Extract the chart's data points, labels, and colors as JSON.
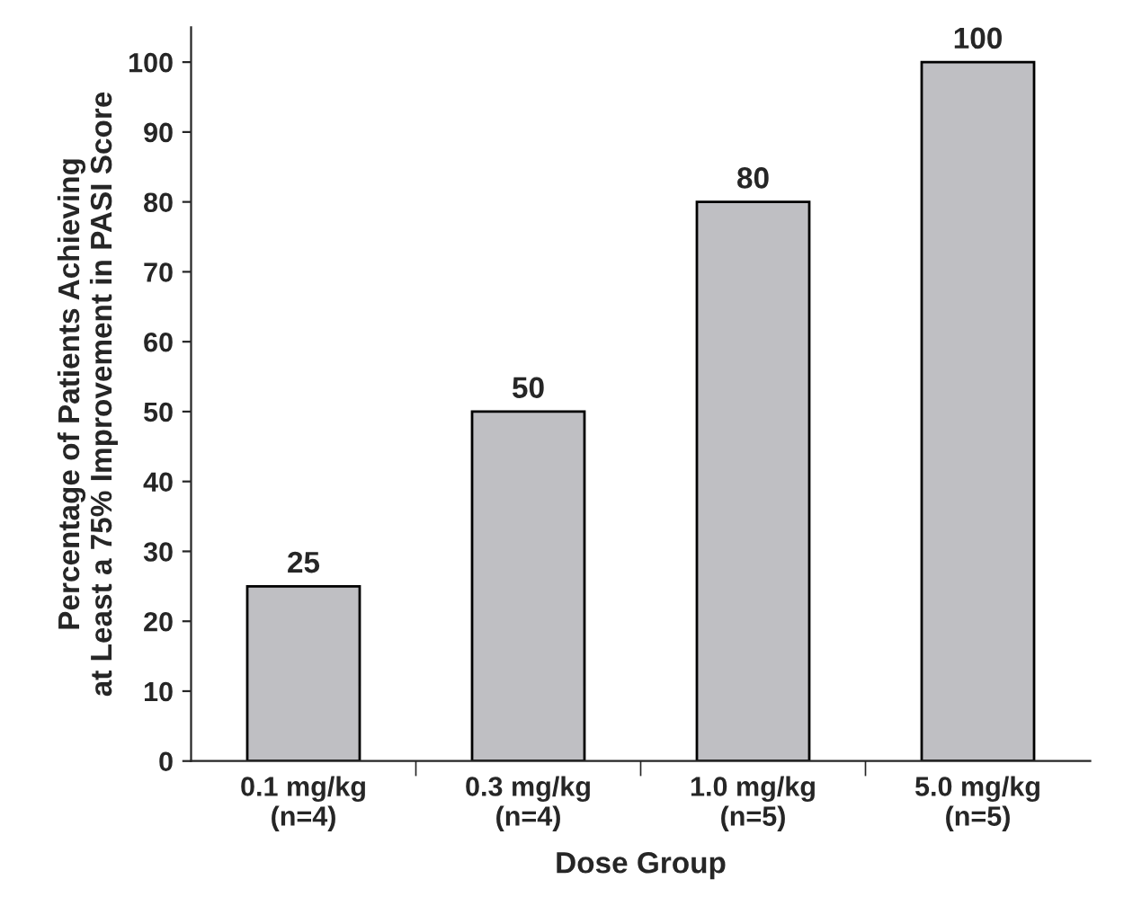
{
  "chart_data": {
    "type": "bar",
    "xlabel": "Dose Group",
    "ylabel": "Percentage of Patients Achieving\nat Least a 75% Improvement in PASI Score",
    "categories": [
      "0.1 mg/kg\n(n=4)",
      "0.3 mg/kg\n(n=4)",
      "1.0 mg/kg\n(n=5)",
      "5.0 mg/kg\n(n=5)"
    ],
    "values": [
      25,
      50,
      80,
      100
    ],
    "color": "#bfbfc3",
    "ylim": [
      0,
      105
    ],
    "yticks": [
      0,
      10,
      20,
      30,
      40,
      50,
      60,
      70,
      80,
      90,
      100
    ],
    "data_labels": true,
    "grid": false
  }
}
